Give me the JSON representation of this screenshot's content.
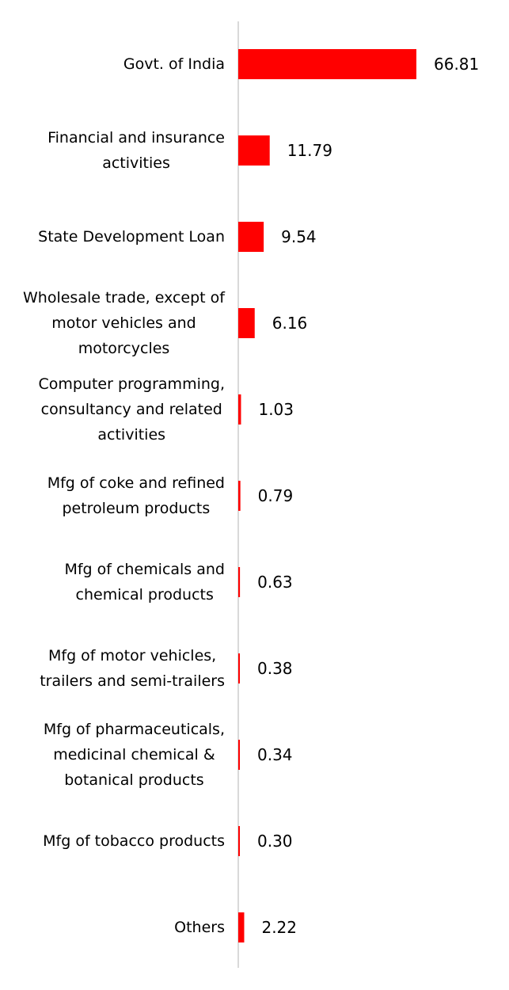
{
  "chart_data": {
    "type": "bar",
    "orientation": "horizontal",
    "title": "",
    "xlabel": "",
    "ylabel": "",
    "categories": [
      [
        "Govt. of India"
      ],
      [
        "Financial and insurance",
        "activities"
      ],
      [
        "State Development Loan"
      ],
      [
        "Wholesale trade, except of",
        "motor vehicles and",
        "motorcycles"
      ],
      [
        "Computer programming,",
        "consultancy and related",
        "activities"
      ],
      [
        "Mfg of coke and refined",
        "petroleum products"
      ],
      [
        "Mfg of chemicals and",
        "chemical products"
      ],
      [
        "Mfg of motor vehicles,",
        "trailers and semi-trailers"
      ],
      [
        "Mfg of pharmaceuticals,",
        "medicinal chemical &",
        "botanical products"
      ],
      [
        "Mfg of tobacco products"
      ],
      [
        "Others"
      ]
    ],
    "values": [
      66.81,
      11.79,
      9.54,
      6.16,
      1.03,
      0.79,
      0.63,
      0.38,
      0.34,
      0.3,
      2.22
    ],
    "value_labels": [
      "66.81",
      "11.79",
      "9.54",
      "6.16",
      "1.03",
      "0.79",
      "0.63",
      "0.38",
      "0.34",
      "0.30",
      "2.22"
    ],
    "xlim": [
      0,
      66.81
    ],
    "grid": false,
    "legend": "none",
    "colors": {
      "bar": "#ff0000",
      "axis": "#d9d9d9",
      "text": "#000000"
    }
  }
}
